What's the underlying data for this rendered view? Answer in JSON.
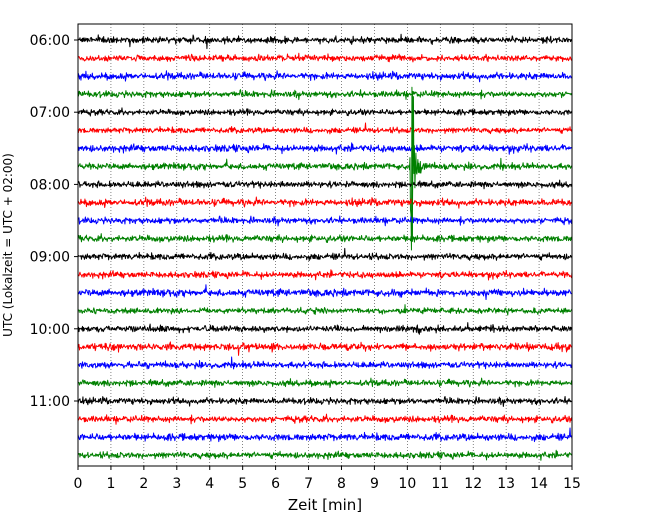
{
  "chart_data": {
    "type": "line",
    "title": "",
    "xlabel": "Zeit  [min]",
    "ylabel": "UTC (Lokalzeit = UTC + 02:00)",
    "xlim": [
      0,
      15
    ],
    "x_ticks": [
      0,
      1,
      2,
      3,
      4,
      5,
      6,
      7,
      8,
      9,
      10,
      11,
      12,
      13,
      14,
      15
    ],
    "y_ticks": [
      {
        "row": 0,
        "label": "06:00"
      },
      {
        "row": 4,
        "label": "07:00"
      },
      {
        "row": 8,
        "label": "08:00"
      },
      {
        "row": 12,
        "label": "09:00"
      },
      {
        "row": 16,
        "label": "10:00"
      },
      {
        "row": 20,
        "label": "11:00"
      }
    ],
    "row_interval_minutes": 15,
    "start_time": "06:00",
    "end_time": "12:00",
    "grid": {
      "vertical": true,
      "style": "dotted"
    },
    "colors": [
      "#000000",
      "#ff0000",
      "#0000ff",
      "#008000"
    ],
    "rows": [
      {
        "time": "06:00",
        "color": "#000000",
        "noise": 0.45
      },
      {
        "time": "06:15",
        "color": "#ff0000",
        "noise": 0.45
      },
      {
        "time": "06:30",
        "color": "#0000ff",
        "noise": 0.5
      },
      {
        "time": "06:45",
        "color": "#008000",
        "noise": 0.45
      },
      {
        "time": "07:00",
        "color": "#000000",
        "noise": 0.4
      },
      {
        "time": "07:15",
        "color": "#ff0000",
        "noise": 0.4
      },
      {
        "time": "07:30",
        "color": "#0000ff",
        "noise": 0.5
      },
      {
        "time": "07:45",
        "color": "#008000",
        "noise": 0.45
      },
      {
        "time": "08:00",
        "color": "#000000",
        "noise": 0.45
      },
      {
        "time": "08:15",
        "color": "#ff0000",
        "noise": 0.5
      },
      {
        "time": "08:30",
        "color": "#0000ff",
        "noise": 0.45
      },
      {
        "time": "08:45",
        "color": "#008000",
        "noise": 0.45
      },
      {
        "time": "09:00",
        "color": "#000000",
        "noise": 0.45
      },
      {
        "time": "09:15",
        "color": "#ff0000",
        "noise": 0.45
      },
      {
        "time": "09:30",
        "color": "#0000ff",
        "noise": 0.5
      },
      {
        "time": "09:45",
        "color": "#008000",
        "noise": 0.4
      },
      {
        "time": "10:00",
        "color": "#000000",
        "noise": 0.45
      },
      {
        "time": "10:15",
        "color": "#ff0000",
        "noise": 0.5
      },
      {
        "time": "10:30",
        "color": "#0000ff",
        "noise": 0.45
      },
      {
        "time": "10:45",
        "color": "#008000",
        "noise": 0.45
      },
      {
        "time": "11:00",
        "color": "#000000",
        "noise": 0.45
      },
      {
        "time": "11:15",
        "color": "#ff0000",
        "noise": 0.45
      },
      {
        "time": "11:30",
        "color": "#0000ff",
        "noise": 0.5
      },
      {
        "time": "11:45",
        "color": "#008000",
        "noise": 0.45
      }
    ],
    "events": [
      {
        "row_time": "07:45",
        "color": "#008000",
        "onset_min": 10.08,
        "peak_min": 10.15,
        "duration_min": 0.55,
        "amplitude_rows": 4.4,
        "tail_amplitude_rows": 0.9
      }
    ]
  }
}
